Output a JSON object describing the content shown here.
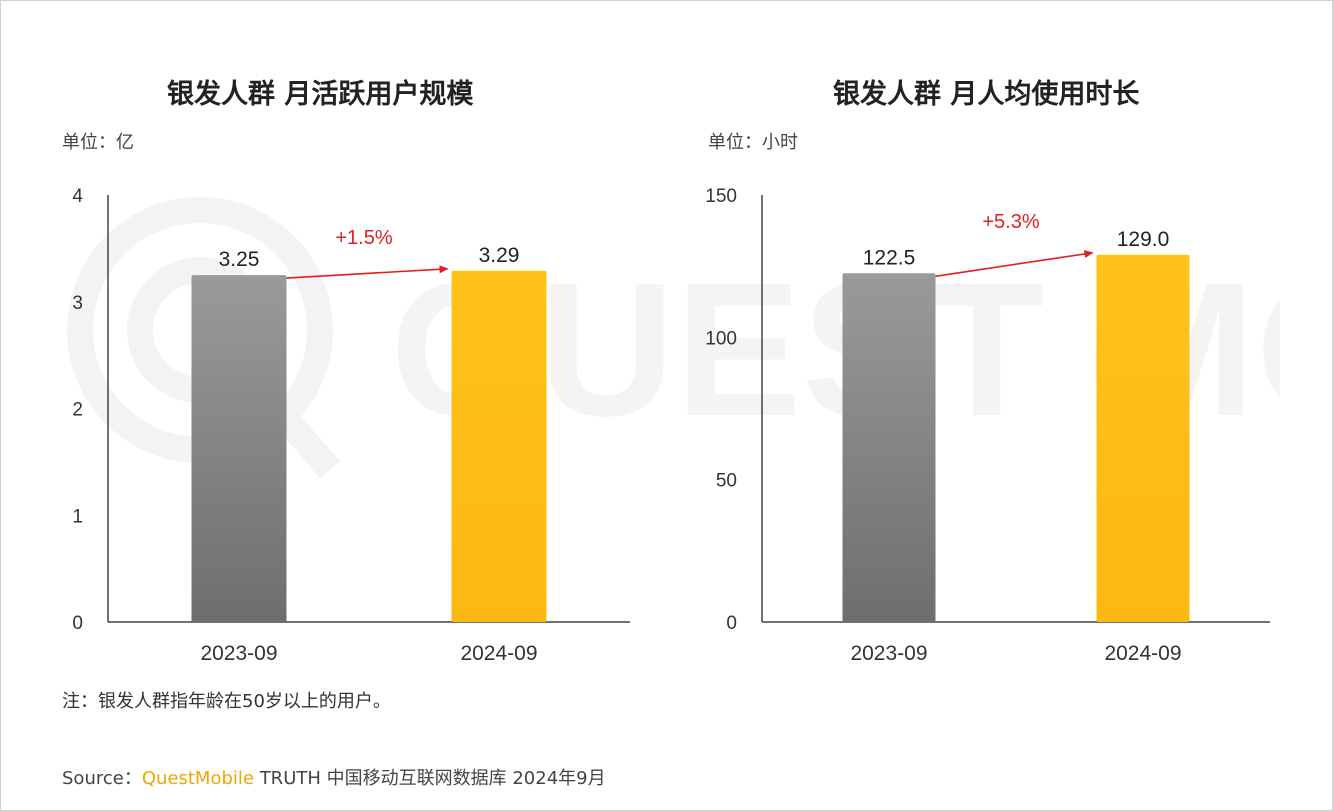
{
  "colors": {
    "gray_top": "#9a9a9a",
    "gray_bottom": "#6e6e6e",
    "gold": "#fdb813",
    "arrow_red": "#e02020",
    "axis": "#444444",
    "brand": "#f0a500"
  },
  "watermark_text": "QUEST MOBILE",
  "chart_data": [
    {
      "type": "bar",
      "title": "银发人群 月活跃用户规模",
      "unit_label": "单位：亿",
      "categories": [
        "2023-09",
        "2024-09"
      ],
      "values": [
        3.25,
        3.29
      ],
      "value_labels": [
        "3.25",
        "3.29"
      ],
      "ylim": [
        0,
        4
      ],
      "yticks": [
        0,
        1,
        2,
        3,
        4
      ],
      "ytick_labels": [
        "0",
        "1",
        "2",
        "3",
        "4"
      ],
      "growth_label": "+1.5%",
      "xlabel": "",
      "ylabel": ""
    },
    {
      "type": "bar",
      "title": "银发人群 月人均使用时长",
      "unit_label": "单位：小时",
      "categories": [
        "2023-09",
        "2024-09"
      ],
      "values": [
        122.5,
        129.0
      ],
      "value_labels": [
        "122.5",
        "129.0"
      ],
      "ylim": [
        0,
        150
      ],
      "yticks": [
        0,
        50,
        100,
        150
      ],
      "ytick_labels": [
        "0",
        "50",
        "100",
        "150"
      ],
      "growth_label": "+5.3%",
      "xlabel": "",
      "ylabel": ""
    }
  ],
  "footnote": "注：银发人群指年龄在50岁以上的用户。",
  "source": {
    "prefix": "Source：",
    "brand": "QuestMobile",
    "rest": " TRUTH 中国移动互联网数据库 2024年9月"
  }
}
